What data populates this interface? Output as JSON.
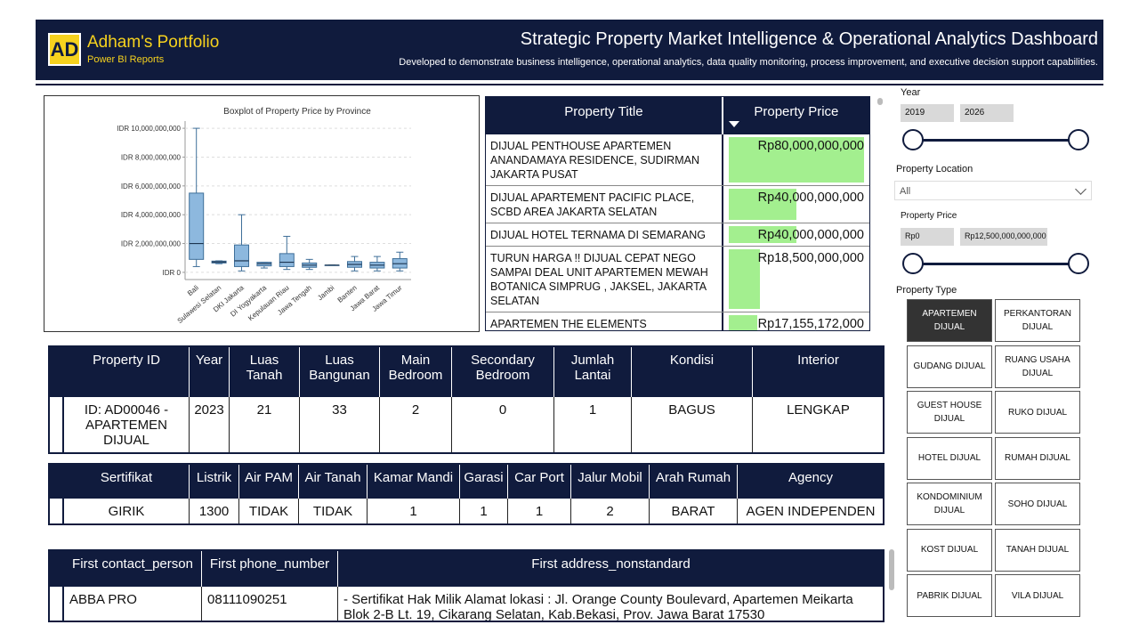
{
  "header": {
    "logo": "AD",
    "brand": "Adham's Portfolio",
    "brand_subtitle": "Power BI Reports",
    "title": "Strategic Property Market Intelligence & Operational Analytics Dashboard",
    "subtitle": "Developed to demonstrate business intelligence, operational analytics, data quality monitoring, process improvement, and executive decision support capabilities."
  },
  "boxplot": {
    "type": "boxplot",
    "title": "Boxplot of Property Price by Province",
    "color": "#8db8de",
    "grid": true,
    "categories": [
      "Bali",
      "Sulawesi Selatan",
      "DKI Jakarta",
      "DI Yogyakarta",
      "Kepulauan Riau",
      "Jawa Tengah",
      "Jambi",
      "Banten",
      "Jawa Barat",
      "Jawa Timur"
    ],
    "boxes": [
      {
        "min": 400000000,
        "q1": 900000000,
        "median": 2000000000,
        "q3": 5500000000,
        "max": 10000000000
      },
      {
        "min": 600000000,
        "q1": 650000000,
        "median": 720000000,
        "q3": 780000000,
        "max": 800000000
      },
      {
        "min": 100000000,
        "q1": 400000000,
        "median": 800000000,
        "q3": 1900000000,
        "max": 4000000000
      },
      {
        "min": 300000000,
        "q1": 450000000,
        "median": 600000000,
        "q3": 700000000,
        "max": 700000000
      },
      {
        "min": 200000000,
        "q1": 400000000,
        "median": 700000000,
        "q3": 1300000000,
        "max": 2500000000
      },
      {
        "min": 200000000,
        "q1": 350000000,
        "median": 500000000,
        "q3": 650000000,
        "max": 900000000
      },
      {
        "min": 500000000,
        "q1": 500000000,
        "median": 500000000,
        "q3": 500000000,
        "max": 500000000
      },
      {
        "min": 100000000,
        "q1": 350000000,
        "median": 550000000,
        "q3": 750000000,
        "max": 1100000000
      },
      {
        "min": 100000000,
        "q1": 300000000,
        "median": 500000000,
        "q3": 700000000,
        "max": 1100000000
      },
      {
        "min": 100000000,
        "q1": 300000000,
        "median": 600000000,
        "q3": 950000000,
        "max": 1400000000
      }
    ],
    "ylim": [
      -500000000,
      10500000000
    ],
    "yticks": [
      {
        "value": 0,
        "label": "IDR 0"
      },
      {
        "value": 2000000000,
        "label": "IDR 2,000,000,000"
      },
      {
        "value": 4000000000,
        "label": "IDR 4,000,000,000"
      },
      {
        "value": 6000000000,
        "label": "IDR 6,000,000,000"
      },
      {
        "value": 8000000000,
        "label": "IDR 8,000,000,000"
      },
      {
        "value": 10000000000,
        "label": "IDR 10,000,000,000"
      }
    ]
  },
  "listing_table": {
    "columns": [
      "Property Title",
      "Property Price"
    ],
    "bar_color": "#a3ef8f",
    "rows": [
      {
        "title": "DIJUAL PENTHOUSE APARTEMEN ANANDAMAYA RESIDENCE, SUDIRMAN JAKARTA PUSAT",
        "price": 80000000000,
        "price_label": "Rp80,000,000,000"
      },
      {
        "title": "DIJUAL APARTEMENT PACIFIC PLACE, SCBD AREA JAKARTA SELATAN",
        "price": 40000000000,
        "price_label": "Rp40,000,000,000"
      },
      {
        "title": "DIJUAL HOTEL TERNAMA DI SEMARANG",
        "price": 40000000000,
        "price_label": "Rp40,000,000,000"
      },
      {
        "title": "TURUN HARGA !! DIJUAL CEPAT NEGO SAMPAI DEAL UNIT APARTEMEN MEWAH BOTANICA SIMPRUG , JAKSEL, JAKARTA SELATAN",
        "price": 18500000000,
        "price_label": "Rp18,500,000,000"
      },
      {
        "title": "APARTEMEN THE ELEMENTS EPICENTRUM",
        "price": 17155172000,
        "price_label": "Rp17,155,172,000"
      }
    ]
  },
  "slicers": {
    "year": {
      "label": "Year",
      "from": 2019,
      "to": 2026
    },
    "location": {
      "label": "Property Location",
      "value": "All"
    },
    "price": {
      "label": "Property Price",
      "from": "Rp0",
      "to": "Rp12,500,000,000,000"
    },
    "type": {
      "label": "Property Type",
      "selected": 0,
      "options": [
        "APARTEMEN DIJUAL",
        "PERKANTORAN DIJUAL",
        "GUDANG DIJUAL",
        "RUANG USAHA DIJUAL",
        "GUEST HOUSE DIJUAL",
        "RUKO DIJUAL",
        "HOTEL DIJUAL",
        "RUMAH DIJUAL",
        "KONDOMINIUM DIJUAL",
        "SOHO DIJUAL",
        "KOST DIJUAL",
        "TANAH DIJUAL",
        "PABRIK DIJUAL",
        "VILA DIJUAL"
      ]
    }
  },
  "detail_tables": [
    {
      "columns": [
        "Property ID",
        "Year",
        "Luas Tanah",
        "Luas Bangunan",
        "Main Bedroom",
        "Secondary Bedroom",
        "Jumlah Lantai",
        "Kondisi",
        "Interior"
      ],
      "rows": [
        [
          "ID: AD00046 - APARTEMEN DIJUAL",
          2023,
          21,
          33,
          2,
          0,
          1,
          "BAGUS",
          "LENGKAP"
        ]
      ]
    },
    {
      "columns": [
        "Sertifikat",
        "Listrik",
        "Air PAM",
        "Air Tanah",
        "Kamar Mandi",
        "Garasi",
        "Car Port",
        "Jalur Mobil",
        "Arah Rumah",
        "Agency"
      ],
      "rows": [
        [
          "GIRIK",
          1300,
          "TIDAK",
          "TIDAK",
          1,
          1,
          1,
          2,
          "BARAT",
          "AGEN INDEPENDEN"
        ]
      ]
    },
    {
      "columns": [
        "First contact_person",
        "First phone_number",
        "First address_nonstandard"
      ],
      "rows": [
        [
          "ABBA PRO",
          "08111090251",
          "- Sertifikat Hak Milik Alamat lokasi : Jl. Orange County Boulevard, Apartemen Meikarta Blok 2-B Lt. 19, Cikarang Selatan, Kab.Bekasi, Prov. Jawa Barat 17530"
        ]
      ]
    }
  ]
}
